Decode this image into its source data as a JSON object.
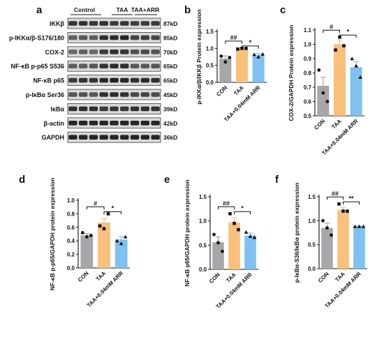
{
  "panel_a": {
    "letter": "a",
    "groups": [
      "Control",
      "TAA",
      "TAA+ARR"
    ],
    "bands": [
      {
        "protein": "IKKβ",
        "kd": "87kD",
        "intensity": [
          0.78,
          0.8,
          0.77,
          0.8,
          0.75,
          0.78,
          0.72,
          0.74,
          0.75
        ]
      },
      {
        "protein": "p-IKKα/β-S176/180",
        "kd": "85kD",
        "intensity": [
          0.55,
          0.6,
          0.55,
          0.8,
          0.82,
          0.85,
          0.7,
          0.72,
          0.68
        ]
      },
      {
        "protein": "COX-2",
        "kd": "70kD",
        "intensity": [
          0.5,
          0.55,
          0.5,
          0.75,
          0.8,
          0.78,
          0.62,
          0.65,
          0.6
        ]
      },
      {
        "protein": "NF-κB p-p65 S536",
        "kd": "65kD",
        "intensity": [
          0.55,
          0.55,
          0.6,
          0.78,
          0.82,
          0.8,
          0.6,
          0.58,
          0.6
        ]
      },
      {
        "protein": "NF-κB p65",
        "kd": "65kD",
        "intensity": [
          0.75,
          0.8,
          0.78,
          0.85,
          0.88,
          0.85,
          0.8,
          0.82,
          0.8
        ]
      },
      {
        "protein": "p-IκBα Ser36",
        "kd": "45kD",
        "intensity": [
          0.6,
          0.62,
          0.6,
          0.8,
          0.82,
          0.8,
          0.68,
          0.7,
          0.66
        ]
      },
      {
        "protein": "IκBα",
        "kd": "39kD",
        "intensity": [
          0.8,
          0.82,
          0.8,
          0.75,
          0.78,
          0.76,
          0.8,
          0.8,
          0.78
        ]
      },
      {
        "protein": "β-actin",
        "kd": "42kD",
        "intensity": [
          0.85,
          0.86,
          0.85,
          0.86,
          0.85,
          0.86,
          0.85,
          0.86,
          0.85
        ]
      },
      {
        "protein": "GAPDH",
        "kd": "36kD",
        "intensity": [
          0.86,
          0.86,
          0.86,
          0.86,
          0.86,
          0.86,
          0.86,
          0.86,
          0.86
        ]
      }
    ]
  },
  "colors": {
    "con": "#a7a7ab",
    "taa": "#f9c07c",
    "arr": "#7fc1f0",
    "point": "#111111"
  },
  "chart_data": [
    {
      "letter": "b",
      "type": "bar",
      "categories": [
        "CON",
        "TAA",
        "TAA+0.04mM ARR"
      ],
      "ylabel": "p-IKKα/β/IKKβ Protein expression",
      "ylim": [
        0,
        1.5
      ],
      "yticks": [
        "0.0",
        "0.5",
        "1.0",
        "1.5"
      ],
      "values": [
        0.7,
        1.0,
        0.8
      ],
      "errors": [
        0.08,
        0.01,
        0.04
      ],
      "points": [
        [
          0.77,
          0.6,
          0.73
        ],
        [
          0.98,
          1.0,
          1.0
        ],
        [
          0.82,
          0.75,
          0.83
        ]
      ],
      "significance": [
        {
          "from": 0,
          "to": 1,
          "label": "##"
        },
        {
          "from": 1,
          "to": 2,
          "label": "*"
        }
      ]
    },
    {
      "letter": "c",
      "type": "bar",
      "categories": [
        "CON",
        "TAA",
        "TAA+0.04mM ARR"
      ],
      "ylabel": "COX-2/GAPDH Protein expression",
      "ylim": [
        0.5,
        1.1
      ],
      "yticks": [
        "0.5",
        "0.6",
        "0.7",
        "0.8",
        "0.9",
        "1.0",
        "1.1"
      ],
      "values": [
        0.71,
        1.0,
        0.84
      ],
      "errors": [
        0.06,
        0.03,
        0.04
      ],
      "points": [
        [
          0.82,
          0.66,
          0.6
        ],
        [
          0.96,
          1.05,
          0.99
        ],
        [
          0.9,
          0.85,
          0.77
        ]
      ],
      "significance": [
        {
          "from": 0,
          "to": 1,
          "label": "#"
        },
        {
          "from": 1,
          "to": 2,
          "label": "*"
        }
      ]
    },
    {
      "letter": "d",
      "type": "bar",
      "categories": [
        "CON",
        "TAA",
        "TAA+0.04mM ARR"
      ],
      "ylabel": "NF-κB p-p65/GAPDH protein expression",
      "ylim": [
        0,
        1.0
      ],
      "yticks": [
        "0.0",
        "0.2",
        "0.4",
        "0.6",
        "0.8",
        "1.0"
      ],
      "values": [
        0.48,
        0.67,
        0.42
      ],
      "errors": [
        0.03,
        0.06,
        0.04
      ],
      "points": [
        [
          0.52,
          0.46,
          0.48
        ],
        [
          0.62,
          0.58,
          0.8
        ],
        [
          0.4,
          0.36,
          0.46
        ]
      ],
      "significance": [
        {
          "from": 0,
          "to": 1,
          "label": "#"
        },
        {
          "from": 1,
          "to": 2,
          "label": "*"
        }
      ]
    },
    {
      "letter": "e",
      "type": "bar",
      "categories": [
        "CON",
        "TAA",
        "TAA+0.04mM ARR"
      ],
      "ylabel": "NF-κB p65/GAPDH protein expression",
      "ylim": [
        0,
        1.5
      ],
      "yticks": [
        "0.0",
        "0.5",
        "1.0",
        "1.5"
      ],
      "values": [
        0.56,
        0.97,
        0.7
      ],
      "errors": [
        0.11,
        0.1,
        0.05
      ],
      "points": [
        [
          0.72,
          0.55,
          0.37
        ],
        [
          1.15,
          0.95,
          0.82
        ],
        [
          0.77,
          0.68,
          0.66
        ]
      ],
      "significance": [
        {
          "from": 0,
          "to": 1,
          "label": "##"
        },
        {
          "from": 1,
          "to": 2,
          "label": "*"
        }
      ]
    },
    {
      "letter": "f",
      "type": "bar",
      "categories": [
        "CON",
        "TAA",
        "TAA+0.04mM ARR"
      ],
      "ylabel": "p-IκBα-S36/IκBα protein expression",
      "ylim": [
        0,
        1.5
      ],
      "yticks": [
        "0.0",
        "0.5",
        "1.0",
        "1.5"
      ],
      "values": [
        0.85,
        1.23,
        0.88
      ],
      "errors": [
        0.1,
        0.05,
        0.01
      ],
      "points": [
        [
          1.0,
          0.85,
          0.7
        ],
        [
          1.35,
          1.2,
          1.2
        ],
        [
          0.88,
          0.88,
          0.88
        ]
      ],
      "significance": [
        {
          "from": 0,
          "to": 1,
          "label": "##"
        },
        {
          "from": 1,
          "to": 2,
          "label": "**"
        }
      ]
    }
  ]
}
